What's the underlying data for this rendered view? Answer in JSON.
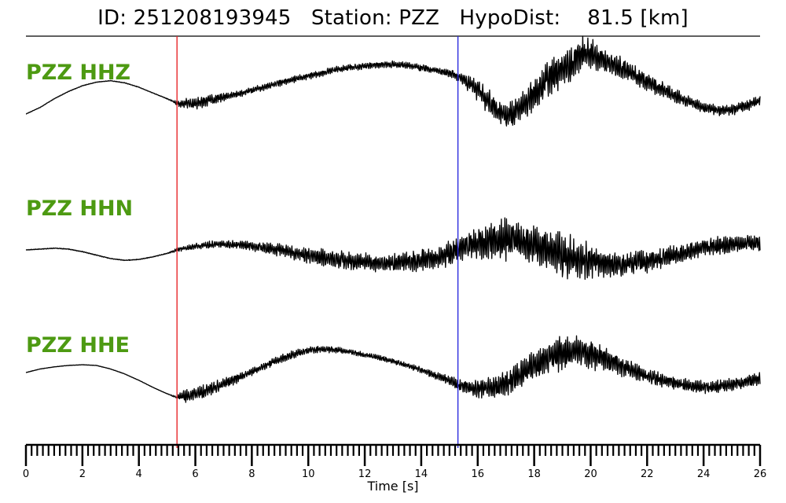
{
  "title": "ID: 251208193945   Station: PZZ   HypoDist:    81.5 [km]",
  "chart_data": {
    "type": "line",
    "title": "ID: 251208193945   Station: PZZ   HypoDist:    81.5 [km]",
    "xlabel": "Time [s]",
    "ylabel": "",
    "xlim": [
      0,
      26
    ],
    "x_ticks": [
      0,
      2,
      4,
      6,
      8,
      10,
      12,
      14,
      16,
      18,
      20,
      22,
      24,
      26
    ],
    "minor_tick_step": 0.2,
    "grid": false,
    "markers": [
      {
        "time": 5.35,
        "color": "#e8262a"
      },
      {
        "time": 15.3,
        "color": "#2b2bde"
      }
    ],
    "label_color": "#4d9a12",
    "trace_color": "#000000",
    "series": [
      {
        "name": "PZZ HHZ",
        "x": [
          0,
          0.5,
          1,
          1.5,
          2,
          2.5,
          3,
          3.5,
          4,
          4.5,
          5,
          5.35,
          5.5,
          6,
          6.5,
          7,
          7.5,
          8,
          8.5,
          9,
          9.5,
          10,
          10.5,
          11,
          11.5,
          12,
          12.5,
          13,
          13.5,
          14,
          14.5,
          15,
          15.3,
          15.5,
          16,
          16.5,
          17,
          17.5,
          18,
          18.5,
          19,
          19.5,
          19.8,
          20,
          20.5,
          21,
          21.5,
          22,
          22.5,
          23,
          23.5,
          24,
          24.5,
          25,
          25.5,
          26
        ],
        "y": [
          0.0,
          0.18,
          0.42,
          0.62,
          0.78,
          0.88,
          0.92,
          0.86,
          0.74,
          0.58,
          0.42,
          0.3,
          0.28,
          0.3,
          0.38,
          0.46,
          0.55,
          0.65,
          0.75,
          0.86,
          0.96,
          1.05,
          1.14,
          1.22,
          1.28,
          1.33,
          1.36,
          1.37,
          1.34,
          1.28,
          1.2,
          1.12,
          1.05,
          0.95,
          0.65,
          0.25,
          -0.05,
          0.15,
          0.55,
          0.95,
          1.25,
          1.5,
          1.7,
          1.65,
          1.48,
          1.3,
          1.1,
          0.9,
          0.7,
          0.5,
          0.32,
          0.18,
          0.1,
          0.12,
          0.22,
          0.38
        ],
        "noise": [
          0.006,
          0.008,
          0.008,
          0.008,
          0.008,
          0.008,
          0.008,
          0.008,
          0.008,
          0.008,
          0.01,
          0.06,
          0.13,
          0.18,
          0.16,
          0.12,
          0.1,
          0.1,
          0.1,
          0.1,
          0.1,
          0.1,
          0.1,
          0.1,
          0.1,
          0.1,
          0.1,
          0.1,
          0.1,
          0.1,
          0.1,
          0.12,
          0.14,
          0.2,
          0.3,
          0.4,
          0.42,
          0.45,
          0.5,
          0.55,
          0.55,
          0.55,
          0.5,
          0.45,
          0.4,
          0.36,
          0.32,
          0.28,
          0.24,
          0.2,
          0.18,
          0.16,
          0.16,
          0.16,
          0.16,
          0.16
        ]
      },
      {
        "name": "PZZ HHN",
        "x": [
          0,
          0.5,
          1,
          1.5,
          2,
          2.5,
          3,
          3.5,
          4,
          4.5,
          5,
          5.35,
          5.5,
          6,
          6.5,
          7,
          7.5,
          8,
          8.5,
          9,
          9.5,
          10,
          10.5,
          11,
          11.5,
          12,
          12.5,
          13,
          13.5,
          14,
          14.5,
          15,
          15.3,
          15.5,
          16,
          16.5,
          17,
          17.5,
          18,
          18.5,
          19,
          19.5,
          20,
          20.5,
          21,
          21.5,
          22,
          22.5,
          23,
          23.5,
          24,
          24.5,
          25,
          25.5,
          26
        ],
        "y": [
          0.0,
          0.02,
          0.04,
          0.02,
          -0.04,
          -0.12,
          -0.2,
          -0.24,
          -0.22,
          -0.16,
          -0.08,
          0.0,
          0.02,
          0.08,
          0.12,
          0.14,
          0.12,
          0.08,
          0.04,
          0.0,
          -0.06,
          -0.12,
          -0.18,
          -0.22,
          -0.26,
          -0.28,
          -0.3,
          -0.3,
          -0.28,
          -0.24,
          -0.18,
          -0.08,
          0.0,
          0.08,
          0.18,
          0.22,
          0.24,
          0.2,
          0.12,
          0.0,
          -0.12,
          -0.2,
          -0.26,
          -0.3,
          -0.32,
          -0.3,
          -0.26,
          -0.2,
          -0.12,
          -0.04,
          0.04,
          0.1,
          0.14,
          0.16,
          0.18
        ],
        "noise": [
          0.008,
          0.01,
          0.01,
          0.01,
          0.01,
          0.01,
          0.01,
          0.01,
          0.01,
          0.01,
          0.012,
          0.04,
          0.06,
          0.08,
          0.09,
          0.1,
          0.11,
          0.12,
          0.14,
          0.16,
          0.18,
          0.2,
          0.22,
          0.22,
          0.22,
          0.22,
          0.22,
          0.24,
          0.26,
          0.28,
          0.3,
          0.32,
          0.34,
          0.36,
          0.4,
          0.44,
          0.55,
          0.5,
          0.45,
          0.5,
          0.6,
          0.55,
          0.45,
          0.4,
          0.35,
          0.3,
          0.28,
          0.26,
          0.24,
          0.22,
          0.22,
          0.22,
          0.22,
          0.22,
          0.22
        ]
      },
      {
        "name": "PZZ HHE",
        "x": [
          0,
          0.5,
          1,
          1.5,
          2,
          2.5,
          3,
          3.5,
          4,
          4.5,
          5,
          5.35,
          5.5,
          6,
          6.5,
          7,
          7.5,
          8,
          8.5,
          9,
          9.5,
          10,
          10.5,
          11,
          11.5,
          12,
          12.5,
          13,
          13.5,
          14,
          14.5,
          15,
          15.3,
          15.5,
          16,
          16.5,
          17,
          17.5,
          18,
          18.5,
          19,
          19.5,
          20,
          20.5,
          21,
          21.5,
          22,
          22.5,
          23,
          23.5,
          24,
          24.5,
          25,
          25.5,
          26
        ],
        "y": [
          0.4,
          0.5,
          0.56,
          0.6,
          0.62,
          0.6,
          0.5,
          0.36,
          0.18,
          -0.02,
          -0.2,
          -0.3,
          -0.28,
          -0.2,
          -0.08,
          0.08,
          0.24,
          0.42,
          0.6,
          0.78,
          0.92,
          1.02,
          1.06,
          1.04,
          0.98,
          0.9,
          0.82,
          0.72,
          0.6,
          0.46,
          0.32,
          0.18,
          0.06,
          0.0,
          -0.06,
          -0.04,
          0.1,
          0.35,
          0.6,
          0.82,
          0.96,
          1.0,
          0.92,
          0.78,
          0.62,
          0.46,
          0.32,
          0.2,
          0.1,
          0.02,
          -0.02,
          0.0,
          0.06,
          0.14,
          0.24
        ],
        "noise": [
          0.004,
          0.005,
          0.005,
          0.005,
          0.005,
          0.005,
          0.005,
          0.005,
          0.005,
          0.005,
          0.006,
          0.04,
          0.18,
          0.22,
          0.2,
          0.16,
          0.14,
          0.12,
          0.12,
          0.12,
          0.12,
          0.12,
          0.1,
          0.1,
          0.08,
          0.08,
          0.08,
          0.08,
          0.08,
          0.1,
          0.12,
          0.14,
          0.16,
          0.2,
          0.26,
          0.34,
          0.4,
          0.42,
          0.45,
          0.5,
          0.55,
          0.5,
          0.45,
          0.38,
          0.32,
          0.28,
          0.24,
          0.22,
          0.2,
          0.2,
          0.2,
          0.2,
          0.2,
          0.2,
          0.2
        ]
      }
    ]
  }
}
